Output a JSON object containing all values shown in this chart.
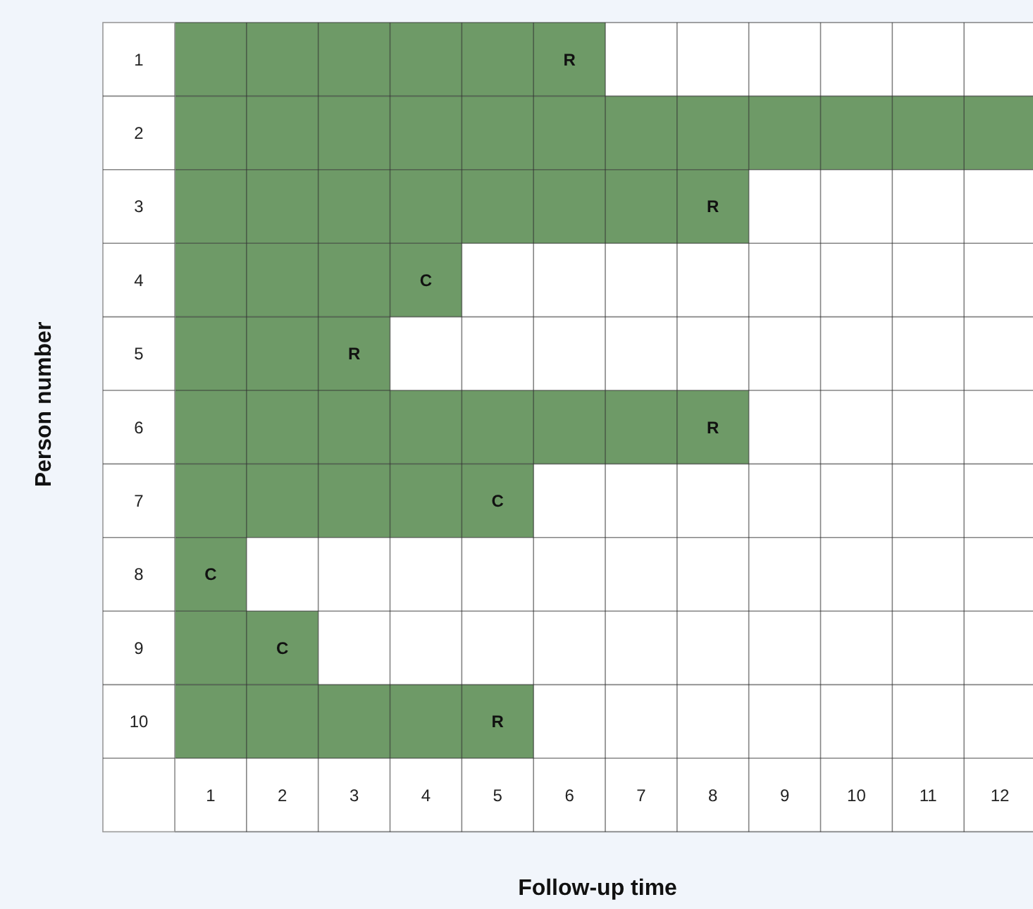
{
  "chart_data": {
    "type": "bar",
    "orientation": "horizontal",
    "xlabel": "Follow-up time",
    "ylabel": "Person number",
    "categories": [
      "1",
      "2",
      "3",
      "4",
      "5",
      "6",
      "7",
      "8",
      "9",
      "10"
    ],
    "base": [
      0.5,
      0.5,
      0.5,
      0.5,
      0.5,
      0.5,
      0.5,
      0.5,
      0.5,
      0.5
    ],
    "values": [
      6,
      12,
      8,
      4,
      3,
      8,
      5,
      1,
      2,
      5
    ],
    "value_labels": [
      "R",
      null,
      "R",
      "C",
      "R",
      "R",
      "C",
      "C",
      "C",
      "R"
    ],
    "color": "#6e9a67",
    "xlim": [
      0.5,
      12.5
    ],
    "xticks": [
      1,
      2,
      3,
      4,
      5,
      6,
      7,
      8,
      9,
      10,
      11,
      12
    ],
    "grid": true
  }
}
